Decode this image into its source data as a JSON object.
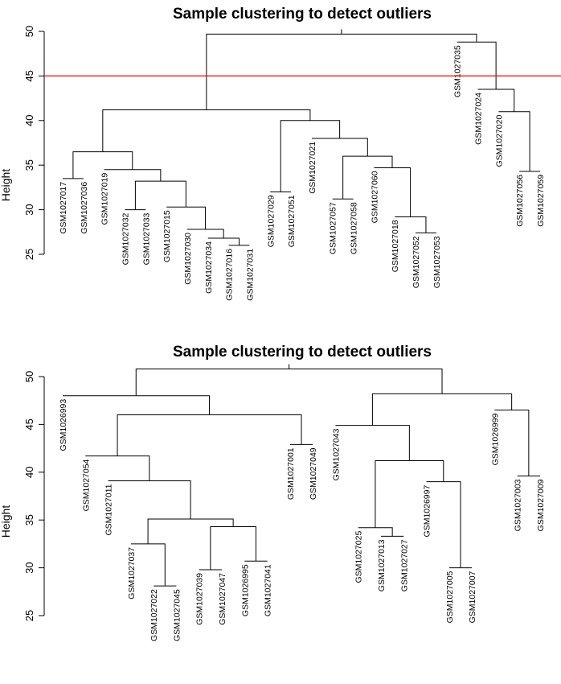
{
  "colors": {
    "cutline": "#ff0000",
    "lines": "#000000"
  },
  "chart_data": [
    {
      "type": "dendrogram",
      "title": "Sample clustering to detect outliers",
      "ylabel": "Height",
      "yticks": [
        25,
        30,
        35,
        40,
        45,
        50
      ],
      "ylim": [
        25,
        50
      ],
      "cut_height": 45,
      "leaves": [
        {
          "label": "GSM1027017",
          "height": 33.5
        },
        {
          "label": "GSM1027036",
          "height": 33.5
        },
        {
          "label": "GSM1027019",
          "height": 34.5
        },
        {
          "label": "GSM1027032",
          "height": 30.0
        },
        {
          "label": "GSM1027033",
          "height": 30.0
        },
        {
          "label": "GSM1027015",
          "height": 30.3
        },
        {
          "label": "GSM1027030",
          "height": 27.8
        },
        {
          "label": "GSM1027034",
          "height": 26.8
        },
        {
          "label": "GSM1027016",
          "height": 26.0
        },
        {
          "label": "GSM1027031",
          "height": 26.0
        },
        {
          "label": "GSM1027029",
          "height": 32.0
        },
        {
          "label": "GSM1027051",
          "height": 32.0
        },
        {
          "label": "GSM1027021",
          "height": 38.0
        },
        {
          "label": "GSM1027057",
          "height": 31.2
        },
        {
          "label": "GSM1027058",
          "height": 31.2
        },
        {
          "label": "GSM1027060",
          "height": 34.7
        },
        {
          "label": "GSM1027018",
          "height": 29.2
        },
        {
          "label": "GSM1027052",
          "height": 27.4
        },
        {
          "label": "GSM1027053",
          "height": 27.4
        },
        {
          "label": "GSM1027035",
          "height": 48.8
        },
        {
          "label": "GSM1027024",
          "height": 43.5
        },
        {
          "label": "GSM1027020",
          "height": 41.0
        },
        {
          "label": "GSM1027056",
          "height": 34.3
        },
        {
          "label": "GSM1027059",
          "height": 34.3
        }
      ],
      "merges": [
        {
          "a": "L0",
          "b": "L1",
          "h": 33.5
        },
        {
          "a": "L3",
          "b": "L4",
          "h": 30.0
        },
        {
          "a": "L8",
          "b": "L9",
          "h": 26.0
        },
        {
          "a": "L7",
          "b": "M2",
          "h": 26.8
        },
        {
          "a": "L6",
          "b": "M3",
          "h": 27.8
        },
        {
          "a": "L5",
          "b": "M4",
          "h": 30.3
        },
        {
          "a": "M1",
          "b": "M5",
          "h": 33.2
        },
        {
          "a": "L2",
          "b": "M6",
          "h": 34.5
        },
        {
          "a": "M0",
          "b": "M7",
          "h": 36.5
        },
        {
          "a": "L10",
          "b": "L11",
          "h": 32.0
        },
        {
          "a": "L13",
          "b": "L14",
          "h": 31.2
        },
        {
          "a": "L17",
          "b": "L18",
          "h": 27.4
        },
        {
          "a": "L16",
          "b": "M11",
          "h": 29.2
        },
        {
          "a": "L15",
          "b": "M12",
          "h": 34.7
        },
        {
          "a": "M10",
          "b": "M13",
          "h": 36.0
        },
        {
          "a": "L12",
          "b": "M14",
          "h": 38.0
        },
        {
          "a": "M9",
          "b": "M15",
          "h": 40.0
        },
        {
          "a": "M8",
          "b": "M16",
          "h": 41.2
        },
        {
          "a": "L22",
          "b": "L23",
          "h": 34.3
        },
        {
          "a": "L21",
          "b": "M18",
          "h": 41.0
        },
        {
          "a": "L20",
          "b": "M19",
          "h": 43.5
        },
        {
          "a": "L19",
          "b": "M20",
          "h": 48.8
        },
        {
          "a": "M17",
          "b": "M21",
          "h": 49.7
        }
      ]
    },
    {
      "type": "dendrogram",
      "title": "Sample clustering to detect outliers",
      "ylabel": "Height",
      "yticks": [
        25,
        30,
        35,
        40,
        45,
        50
      ],
      "ylim": [
        25,
        50
      ],
      "leaves": [
        {
          "label": "GSM1026993",
          "height": 48.0
        },
        {
          "label": "GSM1027054",
          "height": 41.7
        },
        {
          "label": "GSM1027011",
          "height": 39.1
        },
        {
          "label": "GSM1027037",
          "height": 32.5
        },
        {
          "label": "GSM1027022",
          "height": 28.1
        },
        {
          "label": "GSM1027045",
          "height": 28.1
        },
        {
          "label": "GSM1027039",
          "height": 29.8
        },
        {
          "label": "GSM1027047",
          "height": 29.8
        },
        {
          "label": "GSM1026995",
          "height": 30.7
        },
        {
          "label": "GSM1027041",
          "height": 30.7
        },
        {
          "label": "GSM1027001",
          "height": 42.9
        },
        {
          "label": "GSM1027049",
          "height": 42.9
        },
        {
          "label": "GSM1027043",
          "height": 44.9
        },
        {
          "label": "GSM1027025",
          "height": 34.2
        },
        {
          "label": "GSM1027013",
          "height": 33.3
        },
        {
          "label": "GSM1027027",
          "height": 33.3
        },
        {
          "label": "GSM1026997",
          "height": 39.0
        },
        {
          "label": "GSM1027005",
          "height": 30.0
        },
        {
          "label": "GSM1027007",
          "height": 30.0
        },
        {
          "label": "GSM1026999",
          "height": 46.5
        },
        {
          "label": "GSM1027003",
          "height": 39.6
        },
        {
          "label": "GSM1027009",
          "height": 39.6
        }
      ],
      "merges": [
        {
          "a": "L4",
          "b": "L5",
          "h": 28.1
        },
        {
          "a": "L3",
          "b": "M0",
          "h": 32.5
        },
        {
          "a": "L6",
          "b": "L7",
          "h": 29.8
        },
        {
          "a": "L8",
          "b": "L9",
          "h": 30.7
        },
        {
          "a": "M2",
          "b": "M3",
          "h": 34.3
        },
        {
          "a": "M1",
          "b": "M4",
          "h": 35.1
        },
        {
          "a": "L2",
          "b": "M5",
          "h": 39.1
        },
        {
          "a": "L1",
          "b": "M6",
          "h": 41.7
        },
        {
          "a": "L10",
          "b": "L11",
          "h": 42.9
        },
        {
          "a": "M7",
          "b": "M8",
          "h": 46.0
        },
        {
          "a": "L0",
          "b": "M9",
          "h": 48.0
        },
        {
          "a": "L14",
          "b": "L15",
          "h": 33.3
        },
        {
          "a": "L13",
          "b": "M11",
          "h": 34.2
        },
        {
          "a": "L17",
          "b": "L18",
          "h": 30.0
        },
        {
          "a": "L16",
          "b": "M13",
          "h": 39.0
        },
        {
          "a": "M12",
          "b": "M14",
          "h": 41.2
        },
        {
          "a": "L12",
          "b": "M15",
          "h": 44.9
        },
        {
          "a": "L20",
          "b": "L21",
          "h": 39.6
        },
        {
          "a": "L19",
          "b": "M17",
          "h": 46.5
        },
        {
          "a": "M16",
          "b": "M18",
          "h": 48.2
        },
        {
          "a": "M10",
          "b": "M19",
          "h": 50.8
        }
      ]
    }
  ]
}
